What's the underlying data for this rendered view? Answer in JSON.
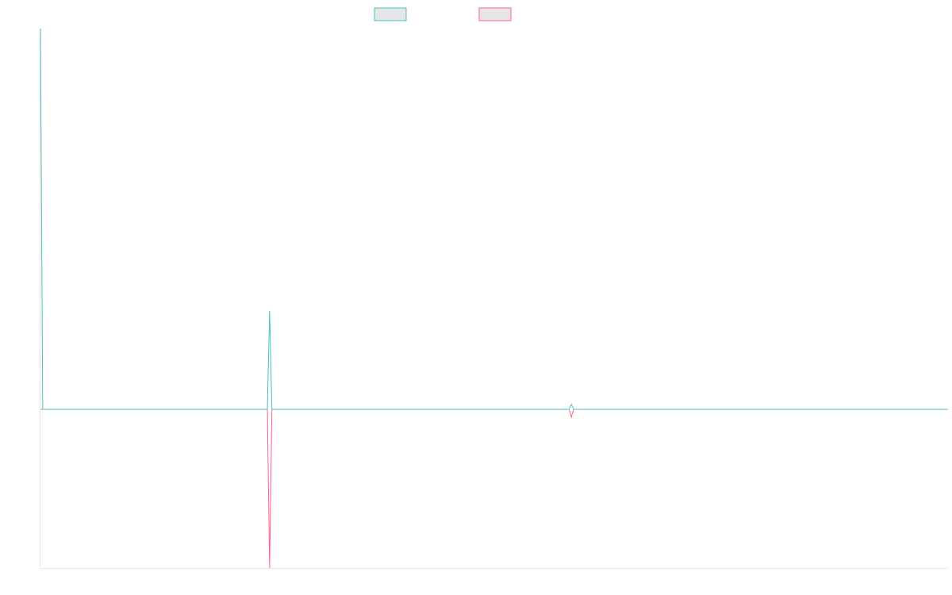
{
  "colors": {
    "series_a": "#4bc0c0",
    "series_b": "#ff6384",
    "swatch_fill": "#e6e6e6",
    "axis": "#e6e6e6"
  },
  "chart_data": {
    "type": "line",
    "title": "",
    "xlabel": "",
    "ylabel": "",
    "legend_position": "top",
    "grid": false,
    "x_ticks_visible": false,
    "y_ticks_visible": false,
    "x": [
      0,
      1,
      100,
      101,
      102,
      233,
      234,
      235,
      400
    ],
    "xlim": [
      0,
      400
    ],
    "ylim": [
      -25,
      60
    ],
    "series": [
      {
        "key": "a",
        "color": "#4bc0c0",
        "values": [
          60,
          0,
          0,
          15.5,
          0,
          0,
          0.8,
          0,
          0
        ]
      },
      {
        "key": "b",
        "color": "#ff6384",
        "values": [
          0,
          0,
          0,
          -25,
          0,
          0,
          -1.2,
          0,
          0
        ]
      }
    ]
  }
}
